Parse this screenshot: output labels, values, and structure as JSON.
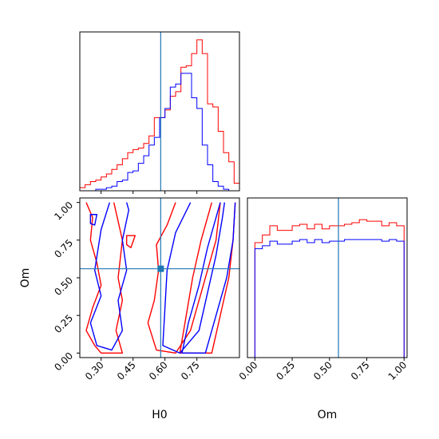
{
  "chart_data": {
    "type": "corner",
    "parameters": [
      "H0",
      "Om"
    ],
    "truth": {
      "H0": 0.58,
      "Om": 0.56
    },
    "truth_color": "#1f77b4",
    "series": [
      {
        "color": "#ff0000"
      },
      {
        "color": "#0000ff"
      }
    ],
    "panels": [
      {
        "id": "hist-H0",
        "type": "histogram",
        "xlim": [
          0.2,
          0.95
        ],
        "xticks": [
          0.3,
          0.45,
          0.6,
          0.75
        ],
        "bins": [
          0.2,
          0.225,
          0.25,
          0.275,
          0.3,
          0.325,
          0.35,
          0.375,
          0.4,
          0.425,
          0.45,
          0.475,
          0.5,
          0.525,
          0.55,
          0.575,
          0.6,
          0.625,
          0.65,
          0.675,
          0.7,
          0.725,
          0.75,
          0.775,
          0.8,
          0.825,
          0.85,
          0.875,
          0.9,
          0.925,
          0.95
        ],
        "ymax": 1.0,
        "series_counts": [
          [
            0.02,
            0.04,
            0.06,
            0.07,
            0.09,
            0.11,
            0.14,
            0.17,
            0.21,
            0.25,
            0.27,
            0.28,
            0.31,
            0.36,
            0.48,
            0.48,
            0.53,
            0.62,
            0.65,
            0.81,
            0.82,
            0.9,
            0.99,
            0.9,
            0.57,
            0.55,
            0.39,
            0.25,
            0.19,
            0.05
          ],
          [
            0.0,
            0.0,
            0.0,
            0.01,
            0.01,
            0.02,
            0.03,
            0.06,
            0.07,
            0.12,
            0.13,
            0.18,
            0.23,
            0.3,
            0.35,
            0.48,
            0.54,
            0.68,
            0.7,
            0.77,
            0.77,
            0.61,
            0.54,
            0.3,
            0.17,
            0.06,
            0.03,
            0.01,
            0.0,
            0.0
          ]
        ]
      },
      {
        "id": "hist-Om",
        "type": "histogram",
        "xlim": [
          -0.05,
          1.02
        ],
        "xticks": [
          0.0,
          0.25,
          0.5,
          0.75,
          1.0
        ],
        "xtick_labels": [
          "0.00",
          "0.25",
          "0.50",
          "0.75",
          "1.00"
        ],
        "xlabel": "Om",
        "bins": [
          0.0,
          0.05,
          0.1,
          0.15,
          0.2,
          0.25,
          0.3,
          0.35,
          0.4,
          0.45,
          0.5,
          0.55,
          0.6,
          0.65,
          0.7,
          0.75,
          0.8,
          0.85,
          0.9,
          0.95,
          1.0
        ],
        "ymax": 1.0,
        "series_counts": [
          [
            0.75,
            0.8,
            0.86,
            0.83,
            0.83,
            0.86,
            0.87,
            0.84,
            0.87,
            0.84,
            0.86,
            0.86,
            0.87,
            0.88,
            0.9,
            0.89,
            0.89,
            0.86,
            0.88,
            0.86
          ],
          [
            0.71,
            0.73,
            0.76,
            0.74,
            0.74,
            0.76,
            0.77,
            0.75,
            0.77,
            0.75,
            0.76,
            0.76,
            0.77,
            0.77,
            0.77,
            0.77,
            0.77,
            0.76,
            0.77,
            0.76
          ]
        ]
      },
      {
        "id": "contour-H0-Om",
        "type": "contour",
        "xlim": [
          0.2,
          0.95
        ],
        "ylim": [
          -0.03,
          1.03
        ],
        "xticks": [
          0.3,
          0.45,
          0.6,
          0.75
        ],
        "xtick_labels": [
          "0.30",
          "0.45",
          "0.60",
          "0.75"
        ],
        "yticks": [
          0.0,
          0.25,
          0.5,
          0.75,
          1.0
        ],
        "ytick_labels": [
          "0.00",
          "0.25",
          "0.50",
          "0.75",
          "1.00"
        ],
        "xlabel": "H0",
        "ylabel": "Om",
        "series_contours": [
          [
            [
              [
                0.23,
                1.0
              ],
              [
                0.26,
                0.9
              ],
              [
                0.25,
                0.75
              ],
              [
                0.28,
                0.6
              ],
              [
                0.3,
                0.45
              ],
              [
                0.26,
                0.3
              ],
              [
                0.23,
                0.15
              ],
              [
                0.27,
                0.05
              ],
              [
                0.3,
                0.0
              ],
              [
                0.4,
                0.0
              ],
              [
                0.37,
                0.15
              ],
              [
                0.4,
                0.35
              ],
              [
                0.38,
                0.5
              ],
              [
                0.4,
                0.75
              ],
              [
                0.36,
                1.0
              ]
            ],
            [
              [
                0.42,
                0.78
              ],
              [
                0.46,
                0.78
              ],
              [
                0.44,
                0.7
              ],
              [
                0.42,
                0.72
              ]
            ],
            [
              [
                0.65,
                1.0
              ],
              [
                0.61,
                0.85
              ],
              [
                0.56,
                0.72
              ],
              [
                0.57,
                0.55
              ],
              [
                0.55,
                0.35
              ],
              [
                0.52,
                0.2
              ],
              [
                0.56,
                0.02
              ],
              [
                0.65,
                0.0
              ],
              [
                0.72,
                0.15
              ],
              [
                0.76,
                0.35
              ],
              [
                0.8,
                0.55
              ],
              [
                0.84,
                0.75
              ],
              [
                0.86,
                1.0
              ]
            ],
            [
              [
                0.82,
                1.0
              ],
              [
                0.77,
                0.75
              ],
              [
                0.73,
                0.5
              ],
              [
                0.7,
                0.25
              ],
              [
                0.67,
                0.0
              ],
              [
                0.82,
                0.0
              ],
              [
                0.86,
                0.25
              ],
              [
                0.9,
                0.5
              ],
              [
                0.92,
                0.75
              ],
              [
                0.93,
                1.0
              ]
            ]
          ],
          [
            [
              [
                0.34,
                1.0
              ],
              [
                0.3,
                0.82
              ],
              [
                0.27,
                0.55
              ],
              [
                0.3,
                0.38
              ],
              [
                0.25,
                0.2
              ],
              [
                0.28,
                0.05
              ],
              [
                0.35,
                0.02
              ],
              [
                0.4,
                0.15
              ],
              [
                0.38,
                0.35
              ],
              [
                0.42,
                0.55
              ],
              [
                0.4,
                0.75
              ],
              [
                0.43,
                0.95
              ],
              [
                0.42,
                1.0
              ]
            ],
            [
              [
                0.25,
                0.92
              ],
              [
                0.28,
                0.92
              ],
              [
                0.27,
                0.85
              ],
              [
                0.25,
                0.86
              ]
            ],
            [
              [
                0.72,
                1.0
              ],
              [
                0.65,
                0.8
              ],
              [
                0.61,
                0.55
              ],
              [
                0.6,
                0.3
              ],
              [
                0.59,
                0.05
              ],
              [
                0.67,
                0.0
              ],
              [
                0.76,
                0.15
              ],
              [
                0.8,
                0.4
              ],
              [
                0.84,
                0.65
              ],
              [
                0.87,
                0.9
              ],
              [
                0.88,
                1.0
              ]
            ],
            [
              [
                0.86,
                1.0
              ],
              [
                0.8,
                0.7
              ],
              [
                0.76,
                0.45
              ],
              [
                0.71,
                0.2
              ],
              [
                0.68,
                0.0
              ],
              [
                0.79,
                0.0
              ],
              [
                0.84,
                0.25
              ],
              [
                0.89,
                0.5
              ],
              [
                0.92,
                0.75
              ],
              [
                0.93,
                1.0
              ]
            ]
          ]
        ]
      }
    ]
  }
}
